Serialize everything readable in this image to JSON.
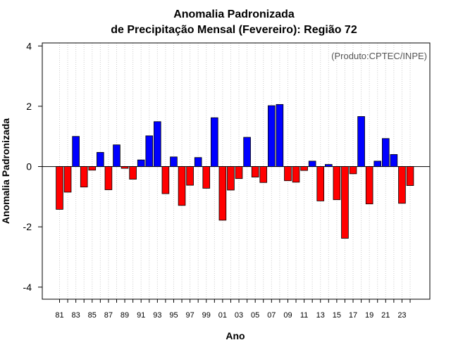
{
  "chart_data": {
    "type": "bar",
    "title": "Anomalia Padronizada",
    "subtitle": "de Precipitação Mensal (Fevereiro): Região 72",
    "xlabel": "Ano",
    "ylabel": "Anomalia Padronizada",
    "credit": "(Produto:CPTEC/INPE)",
    "ylim": [
      -4.4,
      4.1
    ],
    "yticks": [
      -4,
      -2,
      0,
      2,
      4
    ],
    "ytick_labels": [
      "-4",
      "-2",
      "0",
      "2",
      "4"
    ],
    "xtick_labels": [
      "81",
      "83",
      "85",
      "87",
      "89",
      "91",
      "93",
      "95",
      "97",
      "99",
      "01",
      "03",
      "05",
      "07",
      "09",
      "11",
      "13",
      "15",
      "17",
      "19",
      "21",
      "23"
    ],
    "grid": "vertical dotted",
    "colors": {
      "positive": "#0000ff",
      "negative": "#ff0000",
      "zero_line": "#000000",
      "grid": "#cccccc"
    },
    "categories": [
      "1981",
      "1982",
      "1983",
      "1984",
      "1985",
      "1986",
      "1987",
      "1988",
      "1989",
      "1990",
      "1991",
      "1992",
      "1993",
      "1994",
      "1995",
      "1996",
      "1997",
      "1998",
      "1999",
      "2000",
      "2001",
      "2002",
      "2003",
      "2004",
      "2005",
      "2006",
      "2007",
      "2008",
      "2009",
      "2010",
      "2011",
      "2012",
      "2013",
      "2014",
      "2015",
      "2016",
      "2017",
      "2018",
      "2019",
      "2020",
      "2021",
      "2022",
      "2023",
      "2024"
    ],
    "values": [
      -1.42,
      -0.85,
      1.0,
      -0.68,
      -0.12,
      0.47,
      -0.77,
      0.72,
      -0.06,
      -0.42,
      0.22,
      1.02,
      1.49,
      -0.9,
      0.32,
      -1.29,
      -0.62,
      0.3,
      -0.72,
      1.62,
      -1.78,
      -0.78,
      -0.4,
      0.97,
      -0.35,
      -0.53,
      2.02,
      2.06,
      -0.47,
      -0.52,
      -0.13,
      0.18,
      -1.14,
      0.07,
      -1.1,
      -2.38,
      -0.24,
      1.66,
      -1.24,
      0.18,
      0.93,
      0.4,
      -1.22,
      -0.63
    ]
  }
}
